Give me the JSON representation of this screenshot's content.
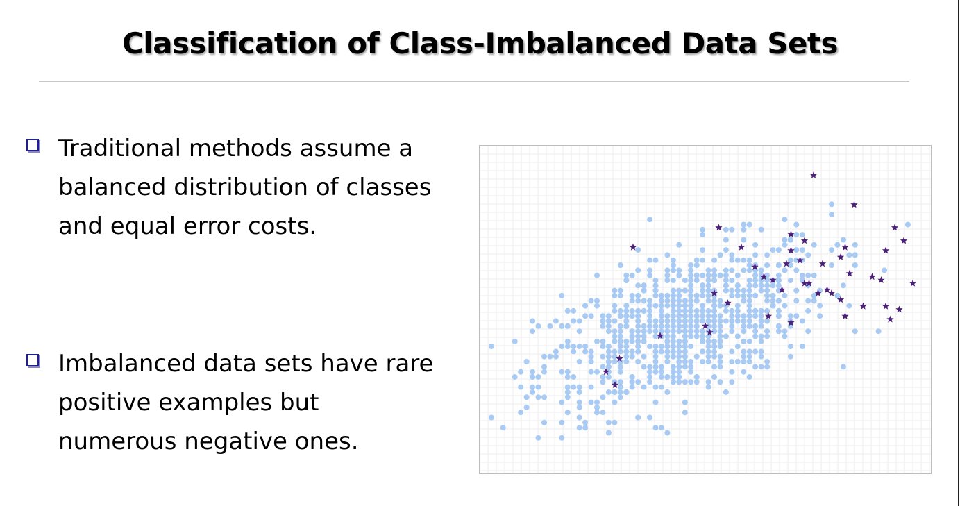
{
  "slide": {
    "title": "Classification of Class-Imbalanced Data Sets",
    "bullets": [
      {
        "icon": "checkbox-bullet-icon",
        "lines": [
          "Traditional methods assume a",
          "balanced distribution of classes",
          "and equal error costs."
        ]
      },
      {
        "icon": "checkbox-bullet-icon",
        "lines": [
          "Imbalanced data sets have rare",
          "positive examples but",
          "numerous negative ones."
        ]
      }
    ]
  },
  "colors": {
    "negative": "#a9cbf3",
    "positive": "#4b1f7a",
    "bullet_box": "#1f1f8f",
    "grid": "#eeeeee"
  },
  "chart_data": {
    "type": "scatter",
    "title": "",
    "xlabel": "",
    "ylabel": "",
    "xlim": [
      0,
      100
    ],
    "ylim": [
      0,
      100
    ],
    "grid": true,
    "series": [
      {
        "marker": "circle",
        "points_generated": true,
        "count": 900,
        "center": [
          45,
          45
        ],
        "spread": [
          16,
          13
        ],
        "correlation": 0.55
      },
      {
        "marker": "star",
        "points": [
          [
            74,
            91
          ],
          [
            83,
            82
          ],
          [
            92,
            75
          ],
          [
            53,
            75
          ],
          [
            58,
            69
          ],
          [
            34,
            69
          ],
          [
            69,
            73
          ],
          [
            69,
            68
          ],
          [
            72,
            71
          ],
          [
            81,
            69
          ],
          [
            90,
            68
          ],
          [
            94,
            71
          ],
          [
            68,
            64
          ],
          [
            71,
            65
          ],
          [
            76,
            64
          ],
          [
            80,
            66
          ],
          [
            82,
            61
          ],
          [
            87,
            60
          ],
          [
            89,
            59
          ],
          [
            96,
            58
          ],
          [
            61,
            63
          ],
          [
            63,
            60
          ],
          [
            65,
            59
          ],
          [
            67,
            56
          ],
          [
            72,
            58
          ],
          [
            73,
            58
          ],
          [
            75,
            55
          ],
          [
            77,
            56
          ],
          [
            78,
            55
          ],
          [
            80,
            53
          ],
          [
            85,
            51
          ],
          [
            90,
            51
          ],
          [
            93,
            50
          ],
          [
            52,
            55
          ],
          [
            55,
            52
          ],
          [
            64,
            48
          ],
          [
            69,
            46
          ],
          [
            81,
            48
          ],
          [
            91,
            47
          ],
          [
            50,
            45
          ],
          [
            51,
            43
          ],
          [
            40,
            42
          ],
          [
            31,
            35
          ],
          [
            28,
            31
          ],
          [
            30,
            27
          ]
        ]
      }
    ]
  }
}
